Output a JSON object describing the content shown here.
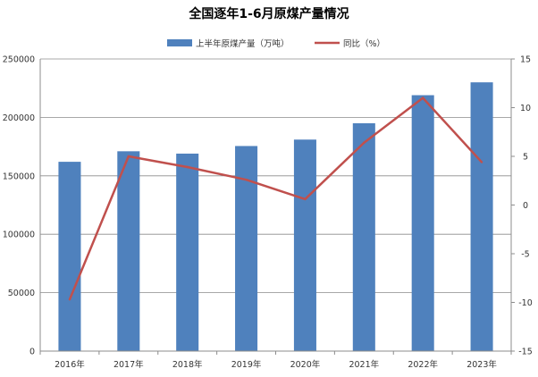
{
  "chart_data": {
    "type": "bar+line",
    "title": "全国逐年1-6月原煤产量情况",
    "categories": [
      "2016年",
      "2017年",
      "2018年",
      "2019年",
      "2020年",
      "2021年",
      "2022年",
      "2023年"
    ],
    "series": [
      {
        "name": "上半年原煤产量（万吨）",
        "type": "bar",
        "axis": "left",
        "color": "#4F81BD",
        "values": [
          162000,
          171000,
          169000,
          175500,
          181000,
          195000,
          219000,
          230000
        ]
      },
      {
        "name": "同比（%）",
        "type": "line",
        "axis": "right",
        "color": "#C0504D",
        "values": [
          -9.7,
          5.0,
          3.9,
          2.6,
          0.6,
          6.4,
          11.0,
          4.4
        ]
      }
    ],
    "y_left": {
      "min": 0,
      "max": 250000,
      "ticks": [
        "0",
        "50000",
        "100000",
        "150000",
        "200000",
        "250000"
      ]
    },
    "y_right": {
      "min": -15,
      "max": 15,
      "ticks": [
        "-15",
        "-10",
        "-5",
        "0",
        "5",
        "10",
        "15"
      ]
    },
    "grid": true,
    "legend_position": "top"
  }
}
